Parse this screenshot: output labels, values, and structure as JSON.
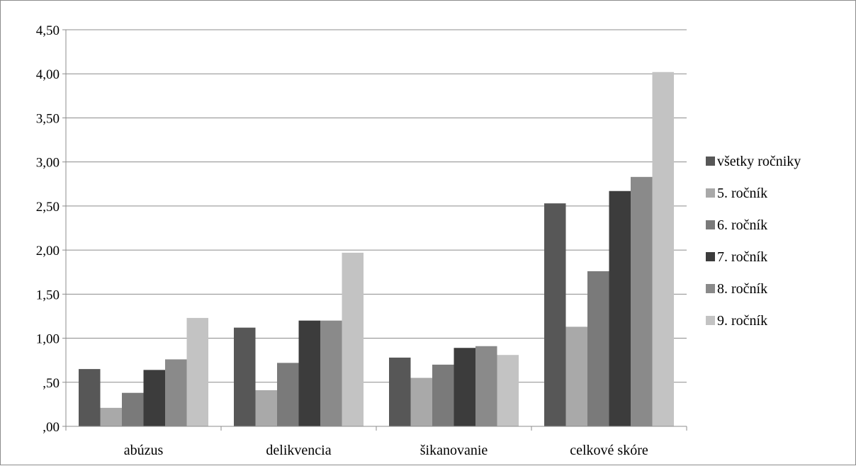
{
  "chart_data": {
    "type": "bar",
    "categories": [
      "abúzus",
      "delikvencia",
      "šikanovanie",
      "celkové skóre"
    ],
    "series": [
      {
        "name": "všetky ročniky",
        "color": "#575757",
        "values": [
          0.65,
          1.12,
          0.78,
          2.53
        ]
      },
      {
        "name": "5. ročník",
        "color": "#a9a9a9",
        "values": [
          0.21,
          0.41,
          0.55,
          1.13
        ]
      },
      {
        "name": "6. ročník",
        "color": "#7a7a7a",
        "values": [
          0.38,
          0.72,
          0.7,
          1.76
        ]
      },
      {
        "name": "7. ročník",
        "color": "#3c3c3c",
        "values": [
          0.64,
          1.2,
          0.89,
          2.67
        ]
      },
      {
        "name": "8. ročník",
        "color": "#8a8a8a",
        "values": [
          0.76,
          1.2,
          0.91,
          2.83
        ]
      },
      {
        "name": "9. ročník",
        "color": "#c3c3c3",
        "values": [
          1.23,
          1.97,
          0.81,
          4.02
        ]
      }
    ],
    "y_ticks": [
      ",00",
      ",50",
      "1,00",
      "1,50",
      "2,00",
      "2,50",
      "3,00",
      "3,50",
      "4,00",
      "4,50"
    ],
    "ylim": [
      0,
      4.5
    ],
    "y_step": 0.5,
    "grid": true,
    "legend_position": "right"
  }
}
